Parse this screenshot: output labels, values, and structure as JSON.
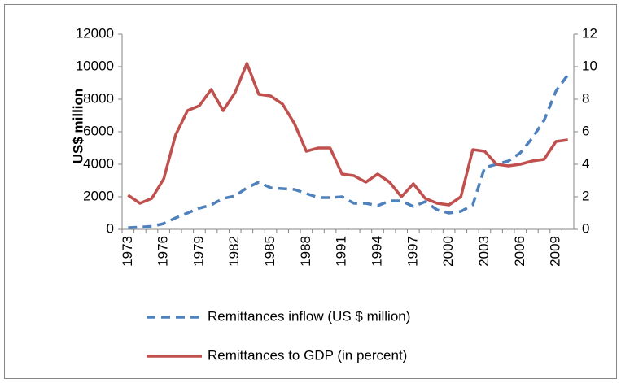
{
  "chart_data": {
    "type": "line",
    "y_label": "US$ million",
    "categories": [
      "1973",
      null,
      null,
      "1976",
      null,
      null,
      "1979",
      null,
      null,
      "1982",
      null,
      null,
      "1985",
      null,
      null,
      "1988",
      null,
      null,
      "1991",
      null,
      null,
      "1994",
      null,
      null,
      "1997",
      null,
      null,
      "2000",
      null,
      null,
      "2003",
      null,
      null,
      "2006",
      null,
      null,
      "2009",
      null
    ],
    "series": [
      {
        "name": "Remittances inflow (US $ million)",
        "color": "#4f81bd",
        "dashed": true,
        "values": [
          100,
          130,
          180,
          350,
          700,
          1000,
          1300,
          1500,
          1900,
          2050,
          2550,
          2900,
          2550,
          2500,
          2450,
          2200,
          1950,
          1950,
          2000,
          1600,
          1600,
          1450,
          1750,
          1750,
          1400,
          1700,
          1200,
          1000,
          1100,
          1500,
          3800,
          4000,
          4200,
          4700,
          5600,
          6700,
          8500,
          9500
        ]
      },
      {
        "name": "Remittances to GDP (in percent)",
        "color": "#c0504d",
        "dashed": false,
        "axis": "y2",
        "values": [
          2.1,
          1.6,
          1.9,
          3.1,
          5.8,
          7.3,
          7.6,
          8.6,
          7.3,
          8.4,
          10.2,
          8.3,
          8.2,
          7.7,
          6.5,
          4.8,
          5.0,
          5.0,
          3.4,
          3.3,
          2.9,
          3.4,
          2.9,
          2.0,
          2.8,
          1.9,
          1.6,
          1.5,
          2.0,
          4.9,
          4.8,
          4.0,
          3.9,
          4.0,
          4.2,
          4.3,
          5.4,
          5.5
        ]
      }
    ],
    "ylim": [
      0,
      12000
    ],
    "yticks": [
      0,
      2000,
      4000,
      6000,
      8000,
      10000,
      12000
    ],
    "y2lim": [
      0,
      12
    ],
    "y2ticks": [
      0,
      2,
      4,
      6,
      8,
      10,
      12
    ],
    "grid": false,
    "legend": "bottom"
  }
}
